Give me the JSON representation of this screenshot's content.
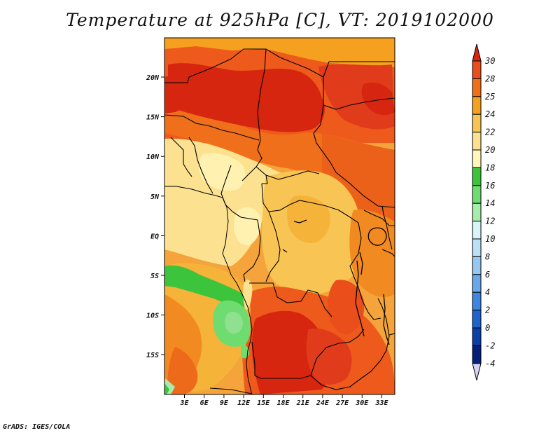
{
  "title": "Temperature at 925hPa [C], VT: 2019102000",
  "credit": "GrADS: IGES/COLA",
  "map": {
    "lat_ticks": [
      "20N",
      "15N",
      "10N",
      "5N",
      "EQ",
      "5S",
      "10S",
      "15S"
    ],
    "lon_ticks": [
      "3E",
      "6E",
      "9E",
      "12E",
      "15E",
      "18E",
      "21E",
      "24E",
      "27E",
      "30E",
      "33E"
    ]
  },
  "colorbar": {
    "labels": [
      "30",
      "28",
      "25",
      "24",
      "22",
      "20",
      "18",
      "16",
      "14",
      "12",
      "10",
      "8",
      "6",
      "4",
      "2",
      "0",
      "-2",
      "-4"
    ],
    "colors": [
      "#e0341c",
      "#e94e1b",
      "#f06f1a",
      "#f5a11f",
      "#f8c454",
      "#fbe190",
      "#fff7bc",
      "#3cc43c",
      "#6fdc6f",
      "#a6ecaa",
      "#d8f4f8",
      "#bde0f7",
      "#96c8f2",
      "#6aa8ea",
      "#3f86e0",
      "#1f63cc",
      "#0a3fa8",
      "#06207a",
      "#0a0a55"
    ],
    "arrow_top": "#d7260f",
    "arrow_bottom": "#d6d2f4"
  }
}
